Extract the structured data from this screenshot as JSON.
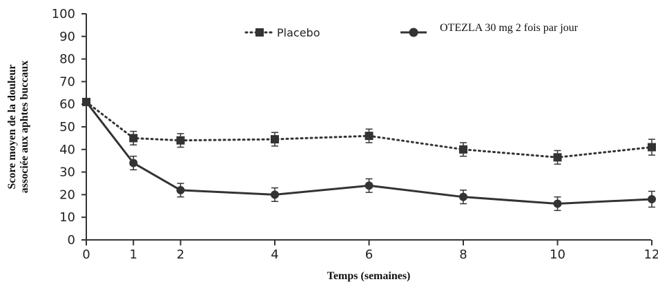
{
  "chart_data": {
    "type": "line",
    "xlabel": "Temps (semaines)",
    "ylabel_lines": [
      "Score moyen de la douleur",
      "associée aux aphtes buccaux"
    ],
    "x": [
      0,
      1,
      2,
      4,
      6,
      8,
      10,
      12
    ],
    "x_ticks": [
      "0",
      "1",
      "2",
      "4",
      "6",
      "8",
      "10",
      "12"
    ],
    "y_ticks": [
      "0",
      "10",
      "20",
      "30",
      "40",
      "50",
      "60",
      "70",
      "80",
      "90",
      "100"
    ],
    "ylim": [
      0,
      100
    ],
    "grid": false,
    "legend_position": "top",
    "series": [
      {
        "name": "Placebo",
        "style": "dotted",
        "marker": "square",
        "values": [
          61,
          45,
          44,
          44.5,
          46,
          40,
          36.5,
          41
        ],
        "error": [
          1,
          3,
          3,
          3,
          3,
          3,
          3,
          3.5
        ]
      },
      {
        "name": "OTEZLA 30 mg 2 fois par jour",
        "style": "solid",
        "marker": "circle",
        "values": [
          61,
          34,
          22,
          20,
          24,
          19,
          16,
          18
        ],
        "error": [
          1,
          3,
          3,
          3,
          3,
          3,
          3,
          3.5
        ]
      }
    ],
    "color": "#333333"
  }
}
